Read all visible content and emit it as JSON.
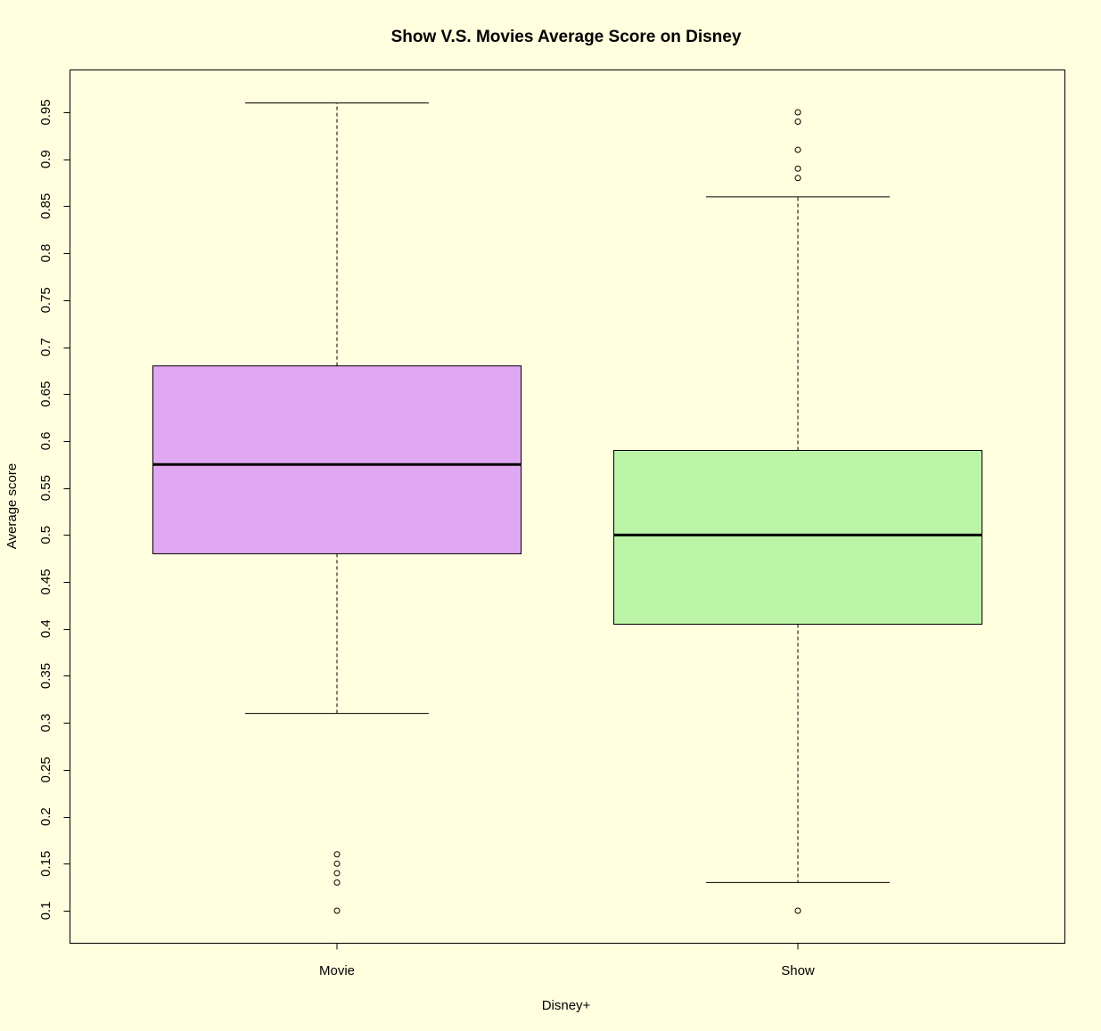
{
  "colors": {
    "background": "#ffffdf",
    "movie_box": "#e0a8f2",
    "show_box": "#bcf5a8",
    "ink": "#000000"
  },
  "chart_data": {
    "type": "boxplot",
    "title": "Show V.S. Movies Average Score on Disney",
    "xlabel": "Disney+",
    "ylabel": "Average score",
    "ylim": [
      0.07,
      1.0
    ],
    "yticks": [
      "0.1",
      "0.15",
      "0.2",
      "0.25",
      "0.3",
      "0.35",
      "0.4",
      "0.45",
      "0.5",
      "0.55",
      "0.6",
      "0.65",
      "0.7",
      "0.75",
      "0.8",
      "0.85",
      "0.9",
      "0.95"
    ],
    "categories": [
      "Movie",
      "Show"
    ],
    "grid": false,
    "legend": "none",
    "series": [
      {
        "category": "Movie",
        "color": "#e0a8f2",
        "whisker_low": 0.31,
        "q1": 0.48,
        "median": 0.575,
        "q3": 0.68,
        "whisker_high": 0.96,
        "outliers": [
          0.1,
          0.13,
          0.14,
          0.15,
          0.16
        ]
      },
      {
        "category": "Show",
        "color": "#bcf5a8",
        "whisker_low": 0.13,
        "q1": 0.405,
        "median": 0.5,
        "q3": 0.59,
        "whisker_high": 0.86,
        "outliers": [
          0.1,
          0.88,
          0.89,
          0.91,
          0.94,
          0.95
        ]
      }
    ]
  }
}
